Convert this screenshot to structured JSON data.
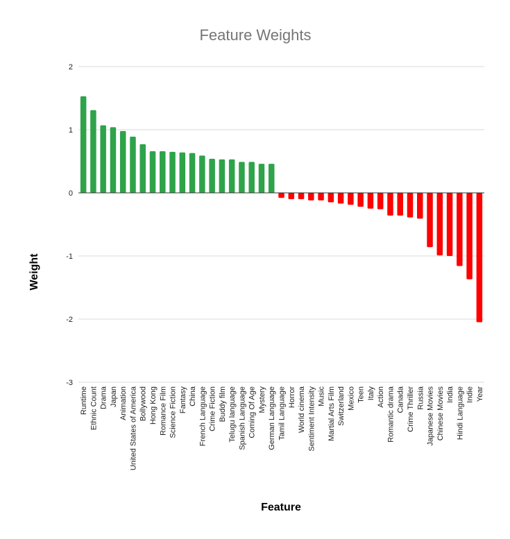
{
  "chart_data": {
    "type": "bar",
    "title": "Feature Weights",
    "xlabel": "Feature",
    "ylabel": "Weight",
    "ylim": [
      -3,
      2
    ],
    "yticks": [
      "2",
      "1",
      "0",
      "-1",
      "-2",
      "-3"
    ],
    "grid": true,
    "legend": "none",
    "colors": {
      "positive": "#2ea34a",
      "negative": "#ff0000",
      "title": "#757575",
      "grid": "#d9d9d9"
    },
    "categories": [
      "Runtime",
      "Ethnic Count",
      "Drama",
      "Japan",
      "Animation",
      "United States of America",
      "Bollywood",
      "Hong Kong",
      "Romance Film",
      "Science Fiction",
      "Fantasy",
      "China",
      "French Language",
      "Crime Fiction",
      "Buddy film",
      "Telugu language",
      "Spanish Language",
      "Coming Of Age",
      "Mystery",
      "German Language",
      "Tamil Language",
      "Horror",
      "World cinema",
      "Sentiment Intensity",
      "Music",
      "Martial Arts Film",
      "Switzerland",
      "Mexico",
      "Teen",
      "Italy",
      "Action",
      "Romantic drama",
      "Canada",
      "Crime Thriller",
      "Russia",
      "Japanese Movies",
      "Chinese Movies",
      "India",
      "Hindi Language",
      "Indie",
      "Year"
    ],
    "values": [
      1.53,
      1.31,
      1.07,
      1.04,
      0.98,
      0.89,
      0.77,
      0.66,
      0.66,
      0.65,
      0.64,
      0.63,
      0.59,
      0.54,
      0.53,
      0.53,
      0.49,
      0.49,
      0.46,
      0.46,
      -0.08,
      -0.1,
      -0.1,
      -0.12,
      -0.12,
      -0.15,
      -0.17,
      -0.19,
      -0.22,
      -0.25,
      -0.26,
      -0.36,
      -0.36,
      -0.39,
      -0.41,
      -0.86,
      -0.99,
      -1.0,
      -1.16,
      -1.37,
      -2.05
    ]
  }
}
